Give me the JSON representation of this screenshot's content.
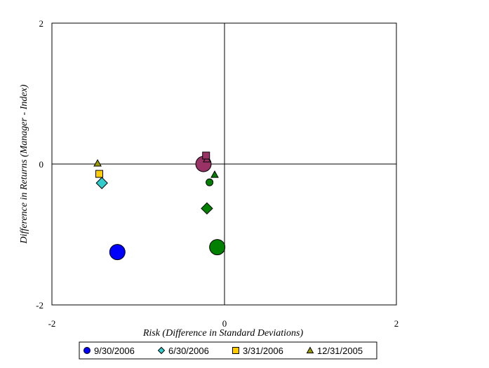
{
  "chart_data": {
    "type": "scatter",
    "title": "",
    "xlabel": "Risk (Difference in Standard Deviations)",
    "ylabel": "Difference in Returns (Manager - Index)",
    "xlim": [
      -2,
      2
    ],
    "ylim": [
      -2,
      2
    ],
    "x_ticks": [
      "-2",
      "0",
      "2"
    ],
    "y_ticks": [
      "2",
      "0",
      "-2"
    ],
    "grid": false,
    "legend_position": "bottom",
    "legend": [
      {
        "label": "9/30/2006",
        "marker": "circle",
        "color": "#0000ff"
      },
      {
        "label": "6/30/2006",
        "marker": "diamond",
        "color": "#33cccc"
      },
      {
        "label": "3/31/2006",
        "marker": "square",
        "color": "#ffcc00"
      },
      {
        "label": "12/31/2005",
        "marker": "triangle",
        "color": "#999900"
      }
    ],
    "series": [
      {
        "group": "blue",
        "color": "#0000ff",
        "points": [
          {
            "x": -1.24,
            "y": -1.25,
            "marker": "circle",
            "size": "large"
          }
        ]
      },
      {
        "group": "cyan",
        "color": "#33cccc",
        "points": [
          {
            "x": -1.42,
            "y": -0.27,
            "marker": "diamond",
            "size": "medium"
          },
          {
            "x": -1.45,
            "y": -0.14,
            "marker": "square",
            "size": "small",
            "color": "#ffcc00"
          },
          {
            "x": -1.47,
            "y": 0.01,
            "marker": "triangle",
            "size": "small",
            "color": "#999900"
          }
        ]
      },
      {
        "group": "purple",
        "color": "#993366",
        "points": [
          {
            "x": -0.24,
            "y": 0.0,
            "marker": "circle",
            "size": "large"
          },
          {
            "x": -0.2,
            "y": 0.07,
            "marker": "triangle",
            "size": "small"
          },
          {
            "x": -0.21,
            "y": 0.12,
            "marker": "square",
            "size": "small"
          }
        ]
      },
      {
        "group": "green",
        "color": "#008000",
        "points": [
          {
            "x": -0.08,
            "y": -1.18,
            "marker": "circle",
            "size": "large"
          },
          {
            "x": -0.2,
            "y": -0.63,
            "marker": "diamond",
            "size": "medium"
          },
          {
            "x": -0.17,
            "y": -0.26,
            "marker": "circle",
            "size": "small"
          },
          {
            "x": -0.11,
            "y": -0.15,
            "marker": "triangle",
            "size": "small"
          }
        ]
      }
    ]
  }
}
